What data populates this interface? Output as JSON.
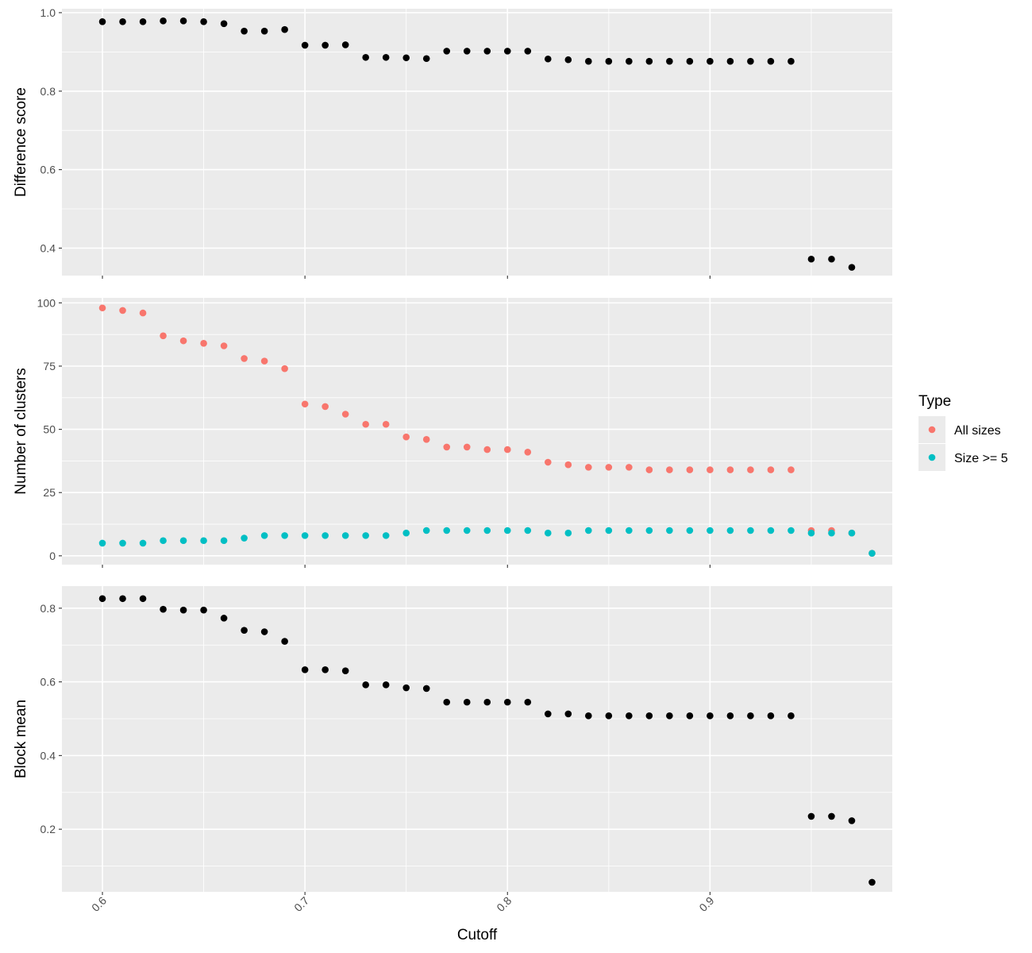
{
  "chart_data": {
    "type": "scatter",
    "layout": "faceted-vertical",
    "shared_x": {
      "label": "Cutoff",
      "lim": [
        0.58,
        0.99
      ],
      "ticks": [
        0.6,
        0.7,
        0.8,
        0.9
      ],
      "tick_labels": [
        "0.6",
        "0.7",
        "0.8",
        "0.9"
      ],
      "tick_label_rotation": "45 degrees"
    },
    "grid": true,
    "panel_background": "#ebebeb",
    "grid_color": "#ffffff",
    "panels": [
      {
        "ylabel": "Difference score",
        "ylim": [
          0.33,
          1.01
        ],
        "yticks": [
          0.4,
          0.6,
          0.8,
          1.0
        ],
        "ytick_labels": [
          "0.4",
          "0.6",
          "0.8",
          "1.0"
        ],
        "series": [
          {
            "color": "#000000",
            "x": [
              0.6,
              0.61,
              0.62,
              0.63,
              0.64,
              0.65,
              0.66,
              0.67,
              0.68,
              0.69,
              0.7,
              0.71,
              0.72,
              0.73,
              0.74,
              0.75,
              0.76,
              0.77,
              0.78,
              0.79,
              0.8,
              0.81,
              0.82,
              0.83,
              0.84,
              0.85,
              0.86,
              0.87,
              0.88,
              0.89,
              0.9,
              0.91,
              0.92,
              0.93,
              0.94,
              0.95,
              0.96,
              0.97
            ],
            "y": [
              0.977,
              0.977,
              0.977,
              0.979,
              0.979,
              0.977,
              0.972,
              0.953,
              0.953,
              0.957,
              0.917,
              0.917,
              0.918,
              0.886,
              0.886,
              0.885,
              0.883,
              0.902,
              0.902,
              0.902,
              0.902,
              0.902,
              0.882,
              0.88,
              0.876,
              0.876,
              0.876,
              0.876,
              0.876,
              0.876,
              0.876,
              0.876,
              0.876,
              0.876,
              0.876,
              0.372,
              0.372,
              0.351
            ]
          }
        ]
      },
      {
        "ylabel": "Number of clusters",
        "ylim": [
          -3.5,
          102
        ],
        "yticks": [
          0,
          25,
          50,
          75,
          100
        ],
        "ytick_labels": [
          "0",
          "25",
          "50",
          "75",
          "100"
        ],
        "legend": {
          "title": "Type",
          "position": "right",
          "entries": [
            "All sizes",
            "Size >= 5"
          ]
        },
        "series": [
          {
            "name": "All sizes",
            "color": "#f8766d",
            "x": [
              0.6,
              0.61,
              0.62,
              0.63,
              0.64,
              0.65,
              0.66,
              0.67,
              0.68,
              0.69,
              0.7,
              0.71,
              0.72,
              0.73,
              0.74,
              0.75,
              0.76,
              0.77,
              0.78,
              0.79,
              0.8,
              0.81,
              0.82,
              0.83,
              0.84,
              0.85,
              0.86,
              0.87,
              0.88,
              0.89,
              0.9,
              0.91,
              0.92,
              0.93,
              0.94,
              0.95,
              0.96,
              0.97,
              0.98
            ],
            "y": [
              98,
              97,
              96,
              87,
              85,
              84,
              83,
              78,
              77,
              74,
              60,
              59,
              56,
              52,
              52,
              47,
              46,
              43,
              43,
              42,
              42,
              41,
              37,
              36,
              35,
              35,
              35,
              34,
              34,
              34,
              34,
              34,
              34,
              34,
              34,
              10,
              10,
              9,
              1
            ]
          },
          {
            "name": "Size >= 5",
            "color": "#00bfc4",
            "x": [
              0.6,
              0.61,
              0.62,
              0.63,
              0.64,
              0.65,
              0.66,
              0.67,
              0.68,
              0.69,
              0.7,
              0.71,
              0.72,
              0.73,
              0.74,
              0.75,
              0.76,
              0.77,
              0.78,
              0.79,
              0.8,
              0.81,
              0.82,
              0.83,
              0.84,
              0.85,
              0.86,
              0.87,
              0.88,
              0.89,
              0.9,
              0.91,
              0.92,
              0.93,
              0.94,
              0.95,
              0.96,
              0.97,
              0.98
            ],
            "y": [
              5,
              5,
              5,
              6,
              6,
              6,
              6,
              7,
              8,
              8,
              8,
              8,
              8,
              8,
              8,
              9,
              10,
              10,
              10,
              10,
              10,
              10,
              9,
              9,
              10,
              10,
              10,
              10,
              10,
              10,
              10,
              10,
              10,
              10,
              10,
              9,
              9,
              9,
              1
            ]
          }
        ]
      },
      {
        "ylabel": "Block mean",
        "ylim": [
          0.03,
          0.86
        ],
        "yticks": [
          0.2,
          0.4,
          0.6,
          0.8
        ],
        "ytick_labels": [
          "0.2",
          "0.4",
          "0.6",
          "0.8"
        ],
        "series": [
          {
            "color": "#000000",
            "x": [
              0.6,
              0.61,
              0.62,
              0.63,
              0.64,
              0.65,
              0.66,
              0.67,
              0.68,
              0.69,
              0.7,
              0.71,
              0.72,
              0.73,
              0.74,
              0.75,
              0.76,
              0.77,
              0.78,
              0.79,
              0.8,
              0.81,
              0.82,
              0.83,
              0.84,
              0.85,
              0.86,
              0.87,
              0.88,
              0.89,
              0.9,
              0.91,
              0.92,
              0.93,
              0.94,
              0.95,
              0.96,
              0.97,
              0.98
            ],
            "y": [
              0.826,
              0.826,
              0.826,
              0.797,
              0.795,
              0.795,
              0.773,
              0.74,
              0.736,
              0.71,
              0.633,
              0.633,
              0.63,
              0.592,
              0.592,
              0.584,
              0.582,
              0.545,
              0.545,
              0.545,
              0.545,
              0.545,
              0.513,
              0.513,
              0.508,
              0.508,
              0.508,
              0.508,
              0.508,
              0.508,
              0.508,
              0.508,
              0.508,
              0.508,
              0.508,
              0.235,
              0.235,
              0.223,
              0.056
            ]
          }
        ]
      }
    ]
  }
}
